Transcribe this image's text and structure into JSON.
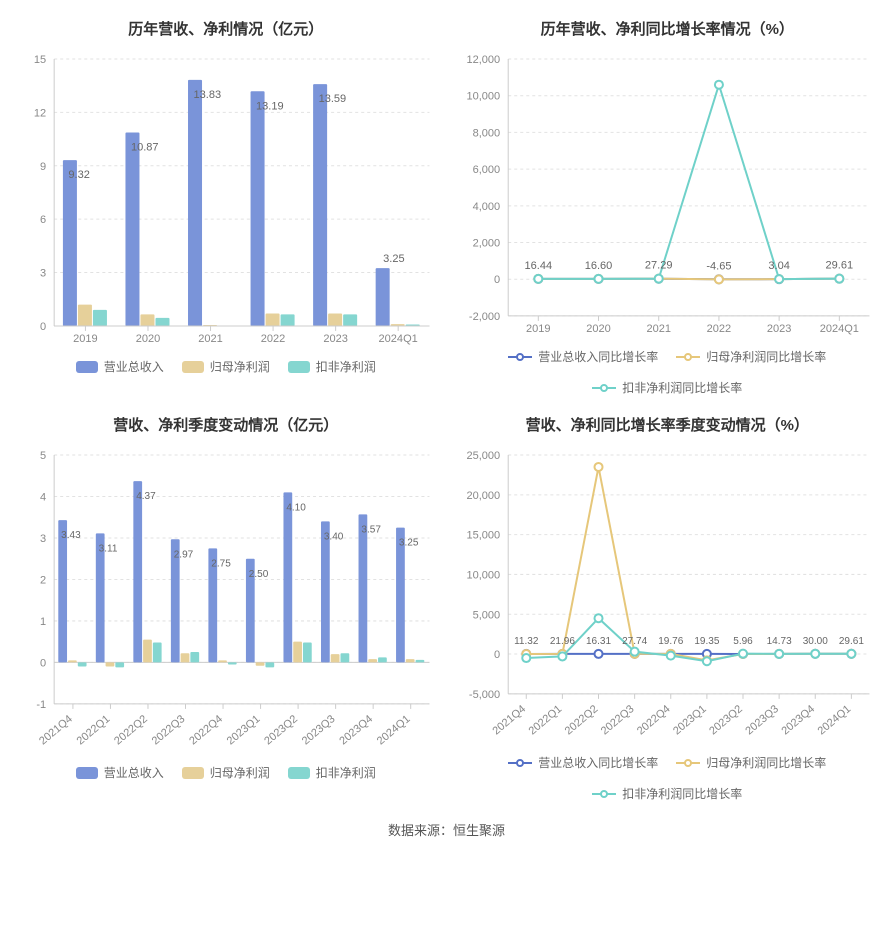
{
  "footer": "数据来源：恒生聚源",
  "palette": {
    "bar_blue": "#7a94d9",
    "bar_tan": "#e6d09a",
    "bar_teal": "#85d6d0",
    "line_blue": "#5470c6",
    "line_tan": "#e6c77a",
    "line_teal": "#6fd1c9",
    "axis": "#cccccc",
    "grid": "#eeeeee",
    "split": "#e2e2e2",
    "tick_text": "#888888",
    "label_text": "#666666",
    "title_text": "#333333"
  },
  "panel1": {
    "title": "历年营收、净利情况（亿元）",
    "title_fontsize": 15,
    "type": "bar-grouped",
    "categories": [
      "2019",
      "2020",
      "2021",
      "2022",
      "2023",
      "2024Q1"
    ],
    "ylim": [
      0,
      15
    ],
    "yticks": [
      0,
      3,
      6,
      9,
      12,
      15
    ],
    "series": [
      {
        "name": "营业总收入",
        "color_key": "bar_blue",
        "values": [
          9.32,
          10.87,
          13.83,
          13.19,
          13.59,
          3.25
        ],
        "show_label": true
      },
      {
        "name": "归母净利润",
        "color_key": "bar_tan",
        "values": [
          1.2,
          0.65,
          0.05,
          0.7,
          0.7,
          0.1
        ],
        "show_label": false
      },
      {
        "name": "扣非净利润",
        "color_key": "bar_teal",
        "values": [
          0.9,
          0.45,
          0.0,
          0.65,
          0.65,
          0.08
        ],
        "show_label": false
      }
    ],
    "bar_group_width": 0.72,
    "label_fontsize": 11
  },
  "panel2": {
    "title": "历年营收、净利同比增长率情况（%）",
    "title_fontsize": 15,
    "type": "line",
    "categories": [
      "2019",
      "2020",
      "2021",
      "2022",
      "2023",
      "2024Q1"
    ],
    "ylim": [
      -2000,
      12000
    ],
    "yticks": [
      -2000,
      0,
      2000,
      4000,
      6000,
      8000,
      10000,
      12000
    ],
    "point_labels": [
      "16.44",
      "16.60",
      "27.29",
      "-4.65",
      "3.04",
      "29.61"
    ],
    "label_fontsize": 11,
    "series": [
      {
        "name": "营业总收入同比增长率",
        "color_key": "line_blue",
        "values": [
          16.44,
          16.6,
          27.29,
          -4.65,
          3.04,
          29.61
        ]
      },
      {
        "name": "归母净利润同比增长率",
        "color_key": "line_tan",
        "values": [
          20,
          20,
          30,
          -10,
          5,
          30
        ]
      },
      {
        "name": "扣非净利润同比增长率",
        "color_key": "line_teal",
        "values": [
          20,
          20,
          30,
          10600,
          5,
          30
        ]
      }
    ]
  },
  "panel3": {
    "title": "营收、净利季度变动情况（亿元）",
    "title_fontsize": 15,
    "type": "bar-grouped",
    "categories": [
      "2021Q4",
      "2022Q1",
      "2022Q2",
      "2022Q3",
      "2022Q4",
      "2023Q1",
      "2023Q2",
      "2023Q3",
      "2023Q4",
      "2024Q1"
    ],
    "ylim": [
      -1,
      5
    ],
    "yticks": [
      -1,
      0,
      1,
      2,
      3,
      4,
      5
    ],
    "x_rotate": -40,
    "series": [
      {
        "name": "营业总收入",
        "color_key": "bar_blue",
        "values": [
          3.43,
          3.11,
          4.37,
          2.97,
          2.75,
          2.5,
          4.1,
          3.4,
          3.57,
          3.25
        ],
        "show_label": true
      },
      {
        "name": "归母净利润",
        "color_key": "bar_tan",
        "values": [
          0.05,
          -0.1,
          0.55,
          0.22,
          0.05,
          -0.08,
          0.5,
          0.2,
          0.08,
          0.08
        ],
        "show_label": false
      },
      {
        "name": "扣非净利润",
        "color_key": "bar_teal",
        "values": [
          -0.1,
          -0.12,
          0.48,
          0.25,
          -0.05,
          -0.12,
          0.48,
          0.22,
          0.12,
          0.06
        ],
        "show_label": false
      }
    ],
    "bar_group_width": 0.78,
    "label_fontsize": 10
  },
  "panel4": {
    "title": "营收、净利同比增长率季度变动情况（%）",
    "title_fontsize": 15,
    "type": "line",
    "categories": [
      "2021Q4",
      "2022Q1",
      "2022Q2",
      "2022Q3",
      "2022Q4",
      "2023Q1",
      "2023Q2",
      "2023Q3",
      "2023Q4",
      "2024Q1"
    ],
    "ylim": [
      -5000,
      25000
    ],
    "yticks": [
      -5000,
      0,
      5000,
      10000,
      15000,
      20000,
      25000
    ],
    "x_rotate": -40,
    "point_labels": [
      "11.32",
      "21.96",
      "16.31",
      "27.74",
      "19.76",
      "19.35",
      "5.96",
      "14.73",
      "30.00",
      "29.61"
    ],
    "label_fontsize": 10,
    "series": [
      {
        "name": "营业总收入同比增长率",
        "color_key": "line_blue",
        "values": [
          11.32,
          21.96,
          16.31,
          27.74,
          19.76,
          19.35,
          5.96,
          14.73,
          30.0,
          29.61
        ]
      },
      {
        "name": "归母净利润同比增长率",
        "color_key": "line_tan",
        "values": [
          10,
          20,
          23500,
          30,
          20,
          -800,
          10,
          15,
          30,
          30
        ]
      },
      {
        "name": "扣非净利润同比增长率",
        "color_key": "line_teal",
        "values": [
          -500,
          -300,
          4500,
          300,
          -200,
          -900,
          50,
          15,
          30,
          30
        ]
      }
    ]
  }
}
